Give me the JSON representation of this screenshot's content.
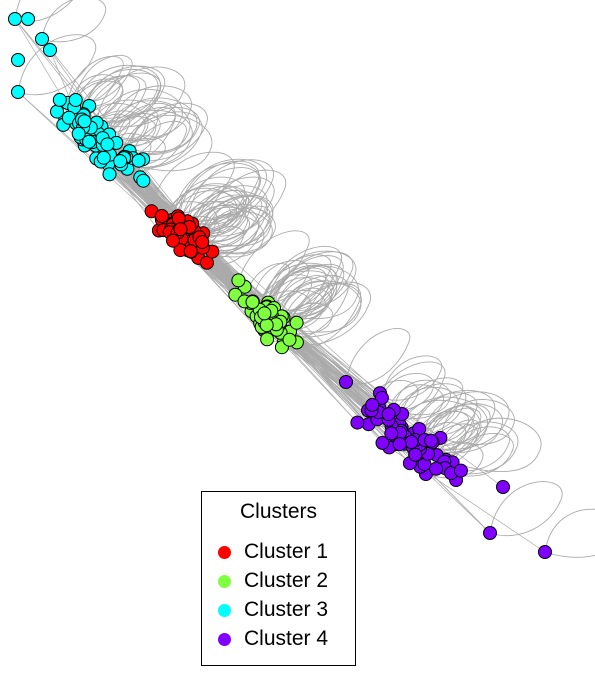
{
  "legend": {
    "title": "Clusters",
    "items": [
      {
        "label": "Cluster 1",
        "color": "#ff0000"
      },
      {
        "label": "Cluster 2",
        "color": "#80ff40"
      },
      {
        "label": "Cluster 3",
        "color": "#00ffff"
      },
      {
        "label": "Cluster 4",
        "color": "#8000ff"
      }
    ]
  },
  "edge_color": "#aaaaaa",
  "node_border": "#000000"
}
